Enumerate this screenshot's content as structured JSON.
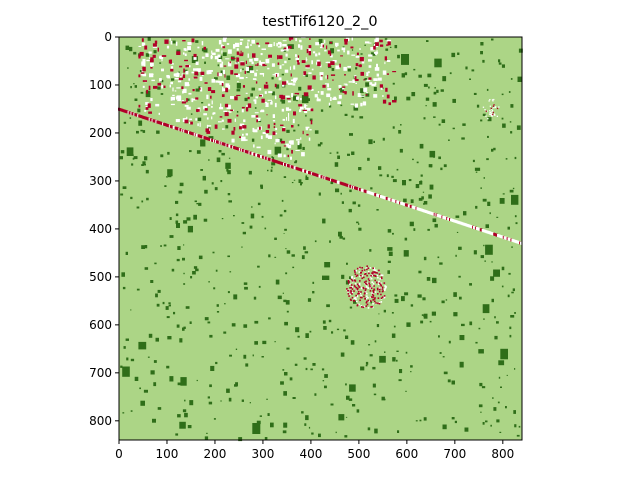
{
  "title": "testTif6120_2_0",
  "colors": {
    "background": "#acd586",
    "vegetation": "#2f6e19",
    "bright": "#ffffff",
    "red": "#b00028",
    "axis": "#000000"
  },
  "chart_data": {
    "type": "heatmap",
    "title": "testTif6120_2_0",
    "xlabel": "",
    "ylabel": "",
    "xlim": [
      0,
      840
    ],
    "ylim": [
      840,
      0
    ],
    "xticks": [
      "0",
      "100",
      "200",
      "300",
      "400",
      "500",
      "600",
      "700",
      "800"
    ],
    "yticks": [
      "0",
      "100",
      "200",
      "300",
      "400",
      "500",
      "600",
      "700",
      "800"
    ],
    "grid": false,
    "classes": [
      "light green background",
      "dark green patches",
      "white",
      "dark red"
    ],
    "features": {
      "diagonal_line": {
        "from": [
          0,
          150
        ],
        "to": [
          840,
          430
        ]
      },
      "blob_center": [
        515,
        520
      ]
    }
  }
}
